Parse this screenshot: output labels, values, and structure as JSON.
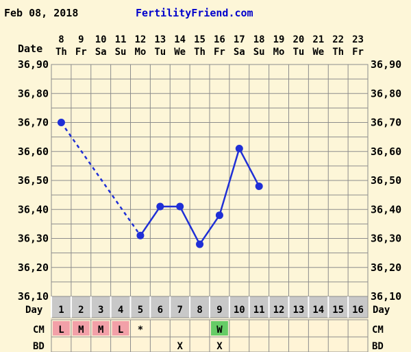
{
  "header": {
    "date": "Feb 08, 2018",
    "site": "FertilityFriend.com"
  },
  "labels": {
    "date_row": "Date",
    "day_row": "Day",
    "cm_row": "CM",
    "bd_row": "BD"
  },
  "colors": {
    "background": "#fdf6d8",
    "grid": "#8c8c8c",
    "line": "#1f2fd6",
    "site_text": "#0000cc",
    "day_row_bg": "#c8c8c8",
    "cm_l_bg": "#f2a0a8",
    "cm_m_bg": "#f2a0a8",
    "cm_w_bg": "#66cc66"
  },
  "chart_data": {
    "type": "line",
    "dates": [
      "8",
      "9",
      "10",
      "11",
      "12",
      "13",
      "14",
      "15",
      "16",
      "17",
      "18",
      "19",
      "20",
      "21",
      "22",
      "23"
    ],
    "weekdays": [
      "Th",
      "Fr",
      "Sa",
      "Su",
      "Mo",
      "Tu",
      "We",
      "Th",
      "Fr",
      "Sa",
      "Su",
      "Mo",
      "Tu",
      "We",
      "Th",
      "Fr"
    ],
    "days": [
      "1",
      "2",
      "3",
      "4",
      "5",
      "6",
      "7",
      "8",
      "9",
      "10",
      "11",
      "12",
      "13",
      "14",
      "15",
      "16"
    ],
    "ylim": [
      36.1,
      36.9
    ],
    "yticks": [
      "36,90",
      "36,80",
      "36,70",
      "36,60",
      "36,50",
      "36,40",
      "36,30",
      "36,20",
      "36,10"
    ],
    "temps": [
      36.7,
      null,
      null,
      null,
      36.31,
      36.41,
      36.41,
      36.28,
      36.38,
      36.61,
      36.48,
      null,
      null,
      null,
      null,
      null
    ],
    "dashed_gap": [
      [
        1,
        5
      ]
    ],
    "cm": [
      "L",
      "M",
      "M",
      "L",
      "*",
      "",
      "",
      "",
      "W",
      "",
      "",
      "",
      "",
      "",
      "",
      ""
    ],
    "bd": [
      "",
      "",
      "",
      "",
      "",
      "",
      "X",
      "",
      "X",
      "",
      "",
      "",
      "",
      "",
      "",
      ""
    ]
  }
}
